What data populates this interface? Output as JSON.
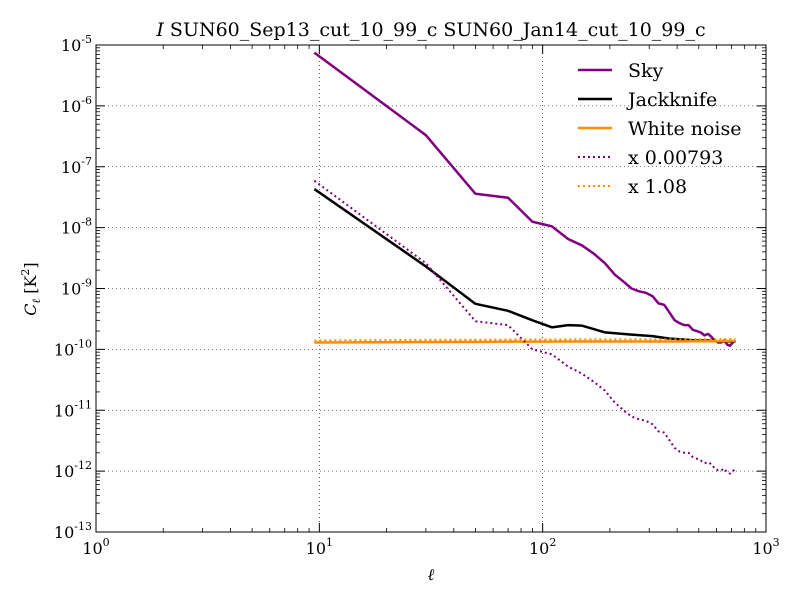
{
  "chart_data": {
    "type": "line",
    "title_symbol": "I",
    "title_text": " SUN60_Sep13_cut_10_99_c SUN60_Jan14_cut_10_99_c",
    "xlabel": "ℓ",
    "ylabel_main": "C",
    "ylabel_sub": "ℓ",
    "ylabel_unit_open": " [K",
    "ylabel_unit_exp": "2",
    "ylabel_unit_close": "]",
    "xscale": "log",
    "yscale": "log",
    "xlim": [
      1,
      1000
    ],
    "ylim": [
      1e-13,
      1e-05
    ],
    "grid": true,
    "legend_position": "top-right",
    "x_ticks": [
      {
        "base": "10",
        "exp": "0",
        "value": 1
      },
      {
        "base": "10",
        "exp": "1",
        "value": 10
      },
      {
        "base": "10",
        "exp": "2",
        "value": 100
      },
      {
        "base": "10",
        "exp": "3",
        "value": 1000
      }
    ],
    "y_ticks": [
      {
        "base": "10",
        "exp": "-13",
        "value": 1e-13
      },
      {
        "base": "10",
        "exp": "-12",
        "value": 1e-12
      },
      {
        "base": "10",
        "exp": "-11",
        "value": 1e-11
      },
      {
        "base": "10",
        "exp": "-10",
        "value": 1e-10
      },
      {
        "base": "10",
        "exp": "-9",
        "value": 1e-09
      },
      {
        "base": "10",
        "exp": "-8",
        "value": 1e-08
      },
      {
        "base": "10",
        "exp": "-7",
        "value": 1e-07
      },
      {
        "base": "10",
        "exp": "-6",
        "value": 1e-06
      },
      {
        "base": "10",
        "exp": "-5",
        "value": 1e-05
      }
    ],
    "series": [
      {
        "name": "Sky",
        "color": "#800080",
        "style": "solid",
        "x": [
          9.5,
          30,
          50,
          70,
          90,
          110,
          130,
          150,
          170,
          190,
          210,
          230,
          250,
          270,
          290,
          310,
          330,
          350,
          370,
          390,
          410,
          430,
          450,
          470,
          490,
          510,
          530,
          550,
          570,
          590,
          610,
          630,
          650,
          670,
          690,
          710,
          730
        ],
        "y": [
          7.5e-06,
          3.3e-07,
          3.6e-08,
          3.1e-08,
          1.25e-08,
          1.05e-08,
          6.5e-09,
          5.1e-09,
          3.7e-09,
          2.6e-09,
          1.7e-09,
          1.3e-09,
          1e-09,
          9e-10,
          8.5e-10,
          7.5e-10,
          5.7e-10,
          5.4e-10,
          4e-10,
          3e-10,
          2.7e-10,
          2.5e-10,
          2.5e-10,
          2.1e-10,
          2e-10,
          1.9e-10,
          1.7e-10,
          1.8e-10,
          1.6e-10,
          1.4e-10,
          1.3e-10,
          1.3e-10,
          1.4e-10,
          1.2e-10,
          1.15e-10,
          1.3e-10,
          1.4e-10
        ]
      },
      {
        "name": "Jackknife",
        "color": "#000000",
        "style": "solid",
        "x": [
          9.5,
          30,
          50,
          70,
          90,
          110,
          130,
          150,
          170,
          190,
          250,
          310,
          370,
          430,
          490,
          550,
          610,
          670,
          730
        ],
        "y": [
          4.3e-08,
          2.3e-09,
          5.6e-10,
          4.3e-10,
          3e-10,
          2.3e-10,
          2.5e-10,
          2.45e-10,
          2.15e-10,
          1.9e-10,
          1.75e-10,
          1.65e-10,
          1.5e-10,
          1.45e-10,
          1.4e-10,
          1.4e-10,
          1.35e-10,
          1.35e-10,
          1.35e-10
        ]
      },
      {
        "name": "White noise",
        "color": "#ff8c00",
        "style": "solid",
        "x": [
          9.5,
          30,
          50,
          70,
          100,
          150,
          200,
          300,
          400,
          500,
          600,
          730
        ],
        "y": [
          1.3e-10,
          1.32e-10,
          1.33e-10,
          1.34e-10,
          1.34e-10,
          1.35e-10,
          1.35e-10,
          1.35e-10,
          1.35e-10,
          1.36e-10,
          1.36e-10,
          1.37e-10
        ]
      },
      {
        "name": "x 0.00793",
        "color": "#800080",
        "style": "dotted",
        "x": [
          9.5,
          30,
          50,
          70,
          90,
          110,
          130,
          150,
          170,
          190,
          210,
          230,
          250,
          270,
          290,
          310,
          330,
          350,
          370,
          390,
          410,
          430,
          450,
          470,
          490,
          510,
          530,
          550,
          570,
          590,
          610,
          630,
          650,
          670,
          690,
          710,
          730
        ],
        "y": [
          5.9e-08,
          2.6e-09,
          2.9e-10,
          2.5e-10,
          1e-10,
          8.3e-11,
          5.2e-11,
          4e-11,
          2.9e-11,
          2.1e-11,
          1.35e-11,
          1e-11,
          7.9e-12,
          7.1e-12,
          6.7e-12,
          5.9e-12,
          4.5e-12,
          4.3e-12,
          3.2e-12,
          2.4e-12,
          2.1e-12,
          2e-12,
          2e-12,
          1.7e-12,
          1.6e-12,
          1.5e-12,
          1.35e-12,
          1.4e-12,
          1.3e-12,
          1.1e-12,
          1.03e-12,
          1.03e-12,
          1.1e-12,
          9.5e-13,
          9.1e-13,
          1e-12,
          1.1e-12
        ]
      },
      {
        "name": "x 1.08",
        "color": "#ff8c00",
        "style": "dotted",
        "x": [
          9.5,
          30,
          50,
          70,
          100,
          150,
          200,
          300,
          400,
          500,
          600,
          730
        ],
        "y": [
          1.4e-10,
          1.43e-10,
          1.44e-10,
          1.45e-10,
          1.45e-10,
          1.46e-10,
          1.46e-10,
          1.46e-10,
          1.46e-10,
          1.47e-10,
          1.47e-10,
          1.48e-10
        ]
      }
    ]
  }
}
